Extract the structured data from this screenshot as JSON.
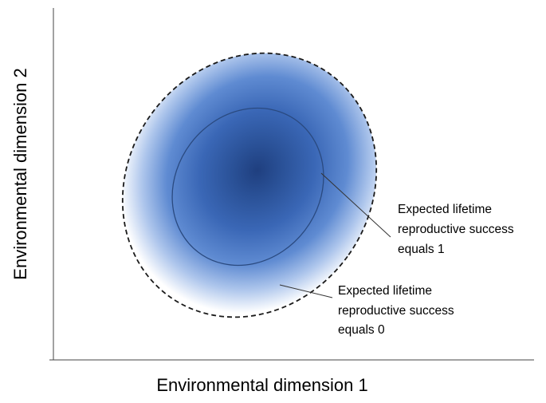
{
  "axes": {
    "x_label": "Environmental dimension 1",
    "y_label": "Environmental dimension 2"
  },
  "annotations": {
    "inner": {
      "lines": [
        "Expected lifetime",
        "reproductive success",
        "equals 1"
      ]
    },
    "outer": {
      "lines": [
        "Expected lifetime",
        "reproductive success",
        "equals 0"
      ]
    }
  },
  "colors": {
    "core": "#1e3f80",
    "mid": "#3e6ec0",
    "edge": "#ffffff",
    "inner_outline": "#2a4a80",
    "outer_outline": "#1a1a1a",
    "axis": "#444444"
  }
}
